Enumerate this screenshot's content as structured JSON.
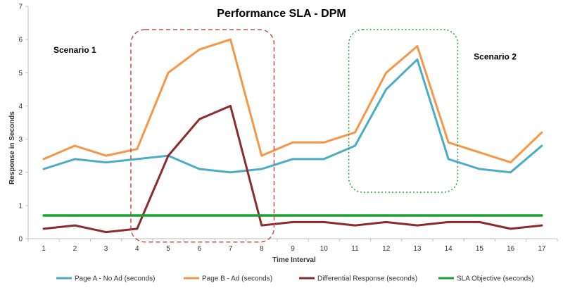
{
  "chart_data": {
    "type": "line",
    "title": "Performance SLA - DPM",
    "xlabel": "Time Interval",
    "ylabel": "Response in Seconds",
    "categories": [
      "1",
      "2",
      "3",
      "4",
      "5",
      "6",
      "7",
      "8",
      "9",
      "10",
      "11",
      "12",
      "13",
      "14",
      "15",
      "16",
      "17"
    ],
    "ylim": [
      0,
      7
    ],
    "yticks": [
      "0",
      "1",
      "2",
      "3",
      "4",
      "5",
      "6",
      "7"
    ],
    "grid": false,
    "legend_position": "bottom",
    "series": [
      {
        "name": "Page A - No Ad (seconds)",
        "color": "#4bacc6",
        "values": [
          2.1,
          2.4,
          2.3,
          2.4,
          2.5,
          2.1,
          2.0,
          2.1,
          2.4,
          2.4,
          2.8,
          4.5,
          5.4,
          2.4,
          2.1,
          2.0,
          2.8
        ]
      },
      {
        "name": "Page B - Ad (seconds)",
        "color": "#f79646",
        "values": [
          2.4,
          2.8,
          2.5,
          2.7,
          5.0,
          5.7,
          6.0,
          2.5,
          2.9,
          2.9,
          3.2,
          5.0,
          5.8,
          2.9,
          2.6,
          2.3,
          3.2
        ]
      },
      {
        "name": "Differential Response (seconds)",
        "color": "#8b2b2e",
        "values": [
          0.3,
          0.4,
          0.2,
          0.3,
          2.5,
          3.6,
          4.0,
          0.4,
          0.5,
          0.5,
          0.4,
          0.5,
          0.4,
          0.5,
          0.5,
          0.3,
          0.4
        ]
      },
      {
        "name": "SLA Objective (seconds)",
        "color": "#1aa12f",
        "values": [
          0.7,
          0.7,
          0.7,
          0.7,
          0.7,
          0.7,
          0.7,
          0.7,
          0.7,
          0.7,
          0.7,
          0.7,
          0.7,
          0.7,
          0.7,
          0.7,
          0.7
        ]
      }
    ],
    "annotations": [
      {
        "text": "Scenario 1",
        "near_x": 2,
        "near_y": 5.6
      },
      {
        "text": "Scenario 2",
        "near_x": 15.5,
        "near_y": 5.4
      }
    ],
    "highlight_regions": [
      {
        "x_from": 3.8,
        "x_to": 8.4,
        "y_from": -0.1,
        "y_to": 6.3,
        "style": "dashed",
        "color": "#c0504d"
      },
      {
        "x_from": 10.8,
        "x_to": 14.3,
        "y_from": 1.4,
        "y_to": 6.3,
        "style": "dotted",
        "color": "#1aa12f"
      }
    ]
  }
}
